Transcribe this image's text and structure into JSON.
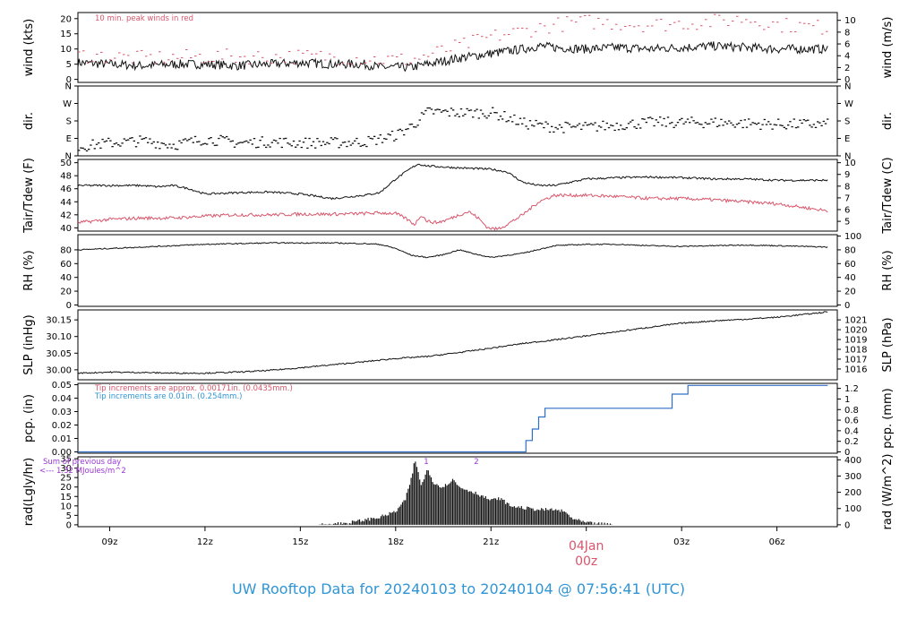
{
  "chart_data": [
    {
      "type": "line",
      "ylabel": "wind (kts)",
      "ylabel_right": "wind (m/s)",
      "ylim": [
        -1,
        22
      ],
      "yticks": [
        0,
        5,
        10,
        15,
        20
      ],
      "yticks_right": [
        0,
        2,
        4,
        6,
        8,
        10
      ],
      "annotation": "10 min. peak winds in red",
      "series": [
        {
          "kind": "noisy",
          "color": "#111111",
          "style": "line",
          "x": [
            8.0,
            9.0,
            10.0,
            11.0,
            12.0,
            13.0,
            14.0,
            15.0,
            16.0,
            17.0,
            17.5,
            18.5,
            19.0,
            20.0,
            21.0,
            22.0,
            22.5,
            23.0,
            24.0,
            25.0,
            26.0,
            27.0,
            28.0,
            29.0,
            30.0,
            31.6
          ],
          "y": [
            5.5,
            5,
            4.5,
            5,
            5,
            4.5,
            5,
            5.5,
            5,
            5,
            4,
            4,
            5,
            7,
            8.5,
            10,
            11,
            10.5,
            10,
            10.5,
            10,
            10.5,
            11,
            10.5,
            10,
            10
          ],
          "noise": 1.5
        },
        {
          "kind": "noisy",
          "color": "#d8566b",
          "style": "dash",
          "x": [
            8.0,
            10.0,
            12.0,
            14.0,
            16.0,
            17.5,
            18.5,
            19.0,
            20.0,
            21.0,
            22.0,
            23.0,
            24.0,
            26.0,
            28.0,
            29.0,
            30.0,
            31.6
          ],
          "y": [
            8,
            7,
            7.5,
            7.5,
            7.5,
            6.5,
            6.5,
            8,
            11,
            14,
            16,
            18,
            19,
            18,
            19,
            20,
            18,
            17
          ],
          "noise": 2.5
        }
      ]
    },
    {
      "type": "scatter",
      "ylabel": "dir.",
      "ylabel_right": "dir.",
      "ylim": [
        0,
        360
      ],
      "ytick_values": [
        0,
        90,
        180,
        270,
        360
      ],
      "ytick_labels": [
        "N",
        "E",
        "S",
        "W",
        "N"
      ],
      "series": [
        {
          "kind": "noisy",
          "color": "#111111",
          "style": "dots",
          "x": [
            8.0,
            9.0,
            10.0,
            11.0,
            12.0,
            13.0,
            14.0,
            15.0,
            16.0,
            17.0,
            17.5,
            18.0,
            18.5,
            19.0,
            20.0,
            21.0,
            21.5,
            22.0,
            23.0,
            24.0,
            26.0,
            28.0,
            30.0,
            31.6
          ],
          "y": [
            50,
            70,
            80,
            60,
            90,
            70,
            75,
            70,
            70,
            75,
            90,
            110,
            160,
            230,
            225,
            225,
            200,
            170,
            150,
            150,
            175,
            175,
            165,
            165
          ],
          "noise": 28
        }
      ]
    },
    {
      "type": "line",
      "ylabel": "Tair/Tdew (F)",
      "ylabel_right": "Tair/Tdew (C)",
      "ylim": [
        39.5,
        50.5
      ],
      "yticks": [
        40,
        42,
        44,
        46,
        48,
        50
      ],
      "yticks_right": [
        5,
        6,
        7,
        8,
        9,
        10
      ],
      "series": [
        {
          "kind": "noisy",
          "color": "#111111",
          "style": "line",
          "x": [
            8.0,
            9.0,
            10.0,
            10.5,
            11.0,
            11.5,
            12.0,
            13.0,
            14.0,
            15.0,
            16.0,
            17.0,
            17.5,
            18.0,
            18.5,
            18.7,
            19.0,
            20.0,
            21.0,
            21.5,
            22.0,
            22.5,
            23.0,
            24.0,
            25.0,
            26.0,
            27.0,
            28.0,
            29.0,
            30.0,
            31.6
          ],
          "y": [
            46.5,
            46.5,
            46.5,
            46.3,
            46.5,
            46,
            45.2,
            45.4,
            45.5,
            45.2,
            44.5,
            45,
            45.4,
            47.5,
            49.2,
            49.8,
            49.5,
            49.2,
            49,
            48.6,
            47,
            46.5,
            46.5,
            47.5,
            47.7,
            47.8,
            47.7,
            47.5,
            47.5,
            47.3,
            47.3
          ],
          "noise": 0.15
        },
        {
          "kind": "noisy",
          "color": "#d8566b",
          "style": "line",
          "x": [
            8.0,
            9.0,
            10.0,
            11.0,
            12.0,
            13.0,
            14.0,
            15.0,
            16.0,
            17.0,
            17.5,
            18.0,
            18.3,
            18.6,
            18.8,
            19.0,
            19.3,
            19.6,
            20.0,
            20.3,
            20.6,
            20.9,
            21.2,
            21.5,
            22.0,
            22.5,
            23.0,
            24.0,
            25.0,
            26.0,
            27.0,
            28.0,
            29.0,
            30.0,
            31.6
          ],
          "y": [
            40.8,
            41.3,
            41.5,
            41.5,
            41.8,
            42,
            42,
            42.1,
            42.1,
            42.2,
            42.3,
            42.2,
            41.5,
            40.5,
            42,
            41,
            40.8,
            41.2,
            42,
            42.5,
            41.5,
            40,
            39.8,
            40.5,
            42,
            44,
            45,
            45,
            44.8,
            44.5,
            44.5,
            44.3,
            44,
            43.7,
            42.6
          ],
          "noise": 0.25
        }
      ]
    },
    {
      "type": "line",
      "ylabel": "RH (%)",
      "ylabel_right": "RH (%)",
      "ylim": [
        -2,
        102
      ],
      "yticks": [
        0,
        20,
        40,
        60,
        80
      ],
      "yticks_right": [
        0,
        20,
        40,
        60,
        80,
        100
      ],
      "series": [
        {
          "kind": "noisy",
          "color": "#111111",
          "style": "line",
          "x": [
            8.0,
            9.0,
            10.0,
            11.0,
            12.0,
            13.0,
            14.0,
            15.0,
            16.0,
            17.0,
            17.5,
            18.0,
            18.5,
            19.0,
            19.5,
            20.0,
            20.5,
            21.0,
            21.5,
            22.0,
            23.0,
            24.0,
            25.0,
            26.0,
            27.0,
            28.0,
            29.0,
            30.0,
            31.6
          ],
          "y": [
            80,
            82,
            84,
            86,
            88,
            89,
            90,
            90,
            90,
            89,
            88,
            82,
            72,
            69,
            73,
            80,
            74,
            69,
            72,
            75,
            86,
            88,
            88,
            86,
            85,
            86,
            87,
            86,
            84
          ],
          "noise": 0.8
        }
      ]
    },
    {
      "type": "line",
      "ylabel": "SLP (inHg)",
      "ylabel_right": "SLP (hPa)",
      "ylim": [
        29.97,
        30.18
      ],
      "yticks": [
        30.0,
        30.05,
        30.1,
        30.15
      ],
      "ytick_labels": [
        "30.00",
        "30.05",
        "30.10",
        "30.15"
      ],
      "yticks_right_hpa": [
        1016,
        1017,
        1018,
        1019,
        1020,
        1021
      ],
      "series": [
        {
          "kind": "noisy",
          "color": "#111111",
          "style": "line",
          "x": [
            8.0,
            9.0,
            10.0,
            11.0,
            12.0,
            13.0,
            14.0,
            15.0,
            16.0,
            17.0,
            18.0,
            19.0,
            20.0,
            21.0,
            22.0,
            23.0,
            24.0,
            25.0,
            26.0,
            27.0,
            28.0,
            29.0,
            30.0,
            31.6
          ],
          "y": [
            29.99,
            29.993,
            29.992,
            29.99,
            29.99,
            29.993,
            29.998,
            30.006,
            30.015,
            30.024,
            30.034,
            30.04,
            30.052,
            30.065,
            30.079,
            30.09,
            30.102,
            30.115,
            30.128,
            30.14,
            30.147,
            30.152,
            30.158,
            30.174
          ],
          "noise": 0.002
        }
      ]
    },
    {
      "type": "line",
      "ylabel": "pcp. (in)",
      "ylabel_right": "pcp. (mm)",
      "ylim": [
        -0.001,
        0.051
      ],
      "yticks": [
        0,
        0.01,
        0.02,
        0.03,
        0.04,
        0.05
      ],
      "ytick_labels": [
        "0.00",
        "0.01",
        "0.02",
        "0.03",
        "0.04",
        "0.05"
      ],
      "yticks_right_mm": [
        0,
        0.2,
        0.4,
        0.6,
        0.8,
        1,
        1.2
      ],
      "notes": [
        {
          "text": "Tip increments are approx. 0.00171in. (0.0435mm.)",
          "color": "#d8566b"
        },
        {
          "text": "Tip increments are 0.01in. (0.254mm.)",
          "color": "#2f95d5"
        }
      ],
      "series": [
        {
          "kind": "step",
          "color": "#2f6fc6",
          "style": "line",
          "x": [
            8.0,
            22.1,
            22.1,
            22.3,
            22.3,
            22.5,
            22.5,
            22.7,
            22.7,
            26.7,
            26.7,
            27.2,
            27.2,
            31.6
          ],
          "y": [
            0,
            0,
            0.0085,
            0.0085,
            0.017,
            0.017,
            0.026,
            0.026,
            0.0325,
            0.0325,
            0.043,
            0.043,
            0.0495,
            0.0495
          ]
        }
      ]
    },
    {
      "type": "area",
      "ylabel": "rad(Lgly/hr)",
      "ylabel_right": "rad (W/m^2)",
      "ylim": [
        -1,
        36
      ],
      "yticks": [
        0,
        5,
        10,
        15,
        20,
        25,
        30,
        35
      ],
      "yticks_right": [
        0,
        100,
        200,
        300,
        400
      ],
      "notes": [
        {
          "text": "Sum of previous day",
          "color": "#9b36d6"
        },
        {
          "text": "<--- 1.32 MJoules/m^2",
          "color": "#9b36d6"
        }
      ],
      "peak_markers": [
        "1",
        "2"
      ],
      "series": [
        {
          "kind": "bars",
          "color": "#111111",
          "style": "area",
          "x": [
            15.6,
            16.0,
            16.5,
            17.0,
            17.5,
            18.0,
            18.3,
            18.5,
            18.6,
            18.7,
            18.8,
            18.9,
            19.0,
            19.2,
            19.5,
            19.8,
            20.0,
            20.5,
            21.0,
            21.3,
            21.6,
            22.0,
            22.5,
            23.0,
            23.3,
            23.6,
            24.0,
            24.8
          ],
          "y": [
            0,
            0.5,
            1,
            2.5,
            4,
            7,
            13,
            25,
            34,
            29,
            21,
            24,
            30,
            22,
            20,
            24,
            20,
            17,
            13,
            14,
            10,
            9,
            8,
            8,
            7,
            3,
            1,
            0
          ],
          "noise": 0.9
        }
      ]
    }
  ],
  "x_axis": {
    "ticks": [
      {
        "x": 9,
        "label": "09z"
      },
      {
        "x": 12,
        "label": "12z"
      },
      {
        "x": 15,
        "label": "15z"
      },
      {
        "x": 18,
        "label": "18z"
      },
      {
        "x": 21,
        "label": "21z"
      },
      {
        "x": 24,
        "label": ""
      },
      {
        "x": 27,
        "label": "03z"
      },
      {
        "x": 30,
        "label": "06z"
      }
    ],
    "date_marker": {
      "x": 24,
      "date": "04Jan",
      "hour": "00z"
    },
    "range": [
      8.0,
      31.9
    ]
  },
  "colors": {
    "frame": "#000000",
    "series_black": "#111111",
    "peak_red": "#d8566b",
    "pcp_blue": "#2f6fc6",
    "footer_blue": "#2f95d5",
    "note_purple": "#9b36d6"
  },
  "footer": {
    "title": "UW Rooftop Data for 20240103  to  20240104 @ 07:56:41  (UTC)"
  }
}
